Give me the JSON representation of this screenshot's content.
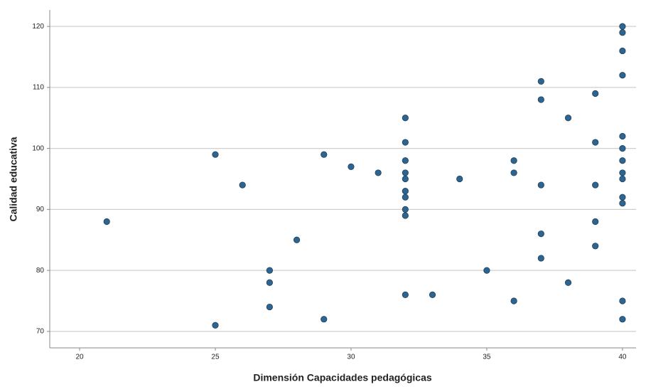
{
  "chart_data": {
    "type": "scatter",
    "x_label": "Dimensión Capacidades pedagógicas",
    "y_label": "Calidad educativa",
    "color": "#2e6590",
    "xlim": [
      18.9,
      40.5
    ],
    "xticks": [
      20,
      25,
      30,
      35,
      40
    ],
    "ylim": [
      67.3,
      122.7
    ],
    "yticks": [
      70,
      80,
      90,
      100,
      110,
      120
    ],
    "grid": true,
    "x": [
      21,
      25,
      25,
      26,
      27,
      27,
      27,
      28,
      29,
      29,
      30,
      31,
      32,
      32,
      32,
      32,
      32,
      32,
      32,
      32,
      32,
      32,
      33,
      34,
      35,
      36,
      36,
      36,
      37,
      37,
      37,
      37,
      37,
      38,
      38,
      39,
      39,
      39,
      39,
      39,
      40,
      40,
      40,
      40,
      40,
      40,
      40,
      40,
      40,
      40,
      40,
      40,
      40
    ],
    "y": [
      88,
      99,
      71,
      94,
      80,
      78,
      74,
      85,
      99,
      72,
      97,
      96,
      105,
      101,
      98,
      96,
      95,
      93,
      92,
      90,
      89,
      76,
      76,
      95,
      80,
      98,
      96,
      75,
      111,
      108,
      94,
      86,
      82,
      105,
      78,
      109,
      101,
      94,
      88,
      84,
      120,
      119,
      116,
      112,
      102,
      100,
      98,
      96,
      95,
      92,
      91,
      75,
      72
    ]
  }
}
